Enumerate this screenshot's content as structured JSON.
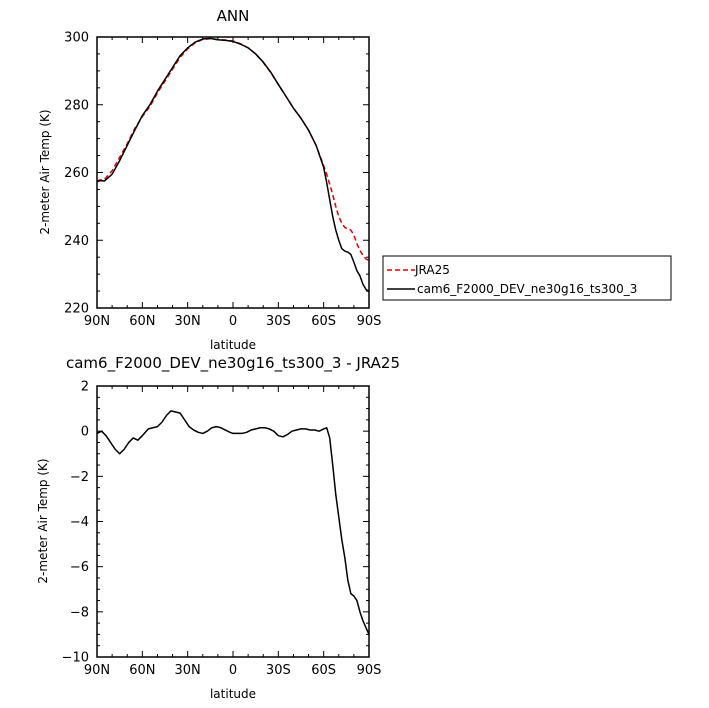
{
  "chart_data": [
    {
      "type": "line",
      "title": "ANN",
      "xlabel": "latitude",
      "ylabel": "2-meter Air Temp (K)",
      "xlim": [
        90,
        -90
      ],
      "ylim": [
        220,
        300
      ],
      "x_ticks": [
        90,
        60,
        30,
        0,
        -30,
        -60,
        -90
      ],
      "x_tick_labels": [
        "90N",
        "60N",
        "30N",
        "0",
        "30S",
        "60S",
        "90S"
      ],
      "y_ticks": [
        220,
        240,
        260,
        280,
        300
      ],
      "y_tick_labels": [
        "220",
        "240",
        "260",
        "280",
        "300"
      ],
      "legend_position": "right",
      "series": [
        {
          "name": "JRA25",
          "color": "#e00000",
          "dash": "dashed",
          "x": [
            90,
            88,
            85,
            80,
            75,
            70,
            65,
            60,
            55,
            50,
            45,
            40,
            35,
            30,
            25,
            20,
            15,
            10,
            5,
            0,
            -5,
            -10,
            -15,
            -20,
            -25,
            -30,
            -35,
            -40,
            -45,
            -50,
            -55,
            -60,
            -62,
            -64,
            -66,
            -68,
            -70,
            -72,
            -74,
            -76,
            -78,
            -80,
            -82,
            -84,
            -86,
            -88,
            -90
          ],
          "values": [
            257.5,
            257.8,
            258.0,
            260.5,
            264.5,
            268.5,
            273.0,
            276.5,
            279.5,
            283.5,
            287.0,
            290.5,
            294.0,
            296.5,
            298.3,
            299.3,
            299.5,
            299.2,
            299.1,
            298.8,
            298.0,
            296.8,
            295.0,
            292.5,
            289.5,
            286.0,
            282.5,
            279.0,
            276.0,
            272.5,
            268.0,
            262.0,
            259.5,
            256.5,
            253.5,
            250.0,
            247.0,
            245.0,
            243.8,
            243.3,
            243.0,
            241.5,
            239.0,
            237.0,
            235.5,
            234.5,
            234.0
          ]
        },
        {
          "name": "cam6_F2000_DEV_ne30g16_ts300_3",
          "color": "#000000",
          "dash": "solid",
          "x": [
            90,
            88,
            85,
            80,
            75,
            70,
            65,
            60,
            55,
            50,
            45,
            40,
            35,
            30,
            25,
            20,
            15,
            10,
            5,
            0,
            -5,
            -10,
            -15,
            -20,
            -25,
            -30,
            -35,
            -40,
            -45,
            -50,
            -55,
            -60,
            -62,
            -64,
            -66,
            -68,
            -70,
            -72,
            -74,
            -76,
            -78,
            -80,
            -82,
            -84,
            -86,
            -88,
            -90
          ],
          "values": [
            257.3,
            257.6,
            257.5,
            259.5,
            263.5,
            268.0,
            272.5,
            276.8,
            280.0,
            284.0,
            287.5,
            291.0,
            294.5,
            296.8,
            298.5,
            299.4,
            299.6,
            299.2,
            299.0,
            298.7,
            297.9,
            296.8,
            295.0,
            292.6,
            289.6,
            286.0,
            282.5,
            279.0,
            276.0,
            272.5,
            268.0,
            261.5,
            257.0,
            252.0,
            247.0,
            243.0,
            240.0,
            237.5,
            236.8,
            236.5,
            235.8,
            233.5,
            231.0,
            229.5,
            227.0,
            225.5,
            224.8
          ]
        }
      ]
    },
    {
      "type": "line",
      "title": "cam6_F2000_DEV_ne30g16_ts300_3 - JRA25",
      "xlabel": "latitude",
      "ylabel": "2-meter Air Temp (K)",
      "xlim": [
        90,
        -90
      ],
      "ylim": [
        -10,
        2
      ],
      "x_ticks": [
        90,
        60,
        30,
        0,
        -30,
        -60,
        -90
      ],
      "x_tick_labels": [
        "90N",
        "60N",
        "30N",
        "0",
        "30S",
        "60S",
        "90S"
      ],
      "y_ticks": [
        -10,
        -8,
        -6,
        -4,
        -2,
        0,
        2
      ],
      "y_tick_labels": [
        "−10",
        "−8",
        "−6",
        "−4",
        "−2",
        "0",
        "2"
      ],
      "series": [
        {
          "color": "#000000",
          "dash": "solid",
          "x": [
            90,
            87,
            84,
            81,
            78,
            75,
            72,
            69,
            66,
            63,
            60,
            56,
            53,
            50,
            47,
            44,
            41,
            38,
            35,
            32,
            29,
            26,
            23,
            20,
            17,
            14,
            11,
            8,
            5,
            2,
            0,
            -3,
            -6,
            -9,
            -12,
            -15,
            -18,
            -21,
            -24,
            -27,
            -30,
            -33,
            -36,
            -39,
            -42,
            -45,
            -48,
            -51,
            -54,
            -57,
            -60,
            -62,
            -64,
            -66,
            -68,
            -70,
            -72,
            -74,
            -76,
            -78,
            -80,
            -82,
            -84,
            -86,
            -88,
            -90
          ],
          "values": [
            -0.1,
            0.0,
            -0.2,
            -0.5,
            -0.8,
            -1.0,
            -0.8,
            -0.5,
            -0.3,
            -0.4,
            -0.2,
            0.1,
            0.15,
            0.2,
            0.4,
            0.7,
            0.9,
            0.85,
            0.8,
            0.5,
            0.2,
            0.05,
            -0.05,
            -0.1,
            0.0,
            0.15,
            0.2,
            0.15,
            0.05,
            -0.05,
            -0.1,
            -0.1,
            -0.1,
            -0.05,
            0.05,
            0.1,
            0.15,
            0.15,
            0.1,
            0.0,
            -0.2,
            -0.25,
            -0.15,
            0.0,
            0.05,
            0.1,
            0.1,
            0.05,
            0.05,
            0.0,
            0.1,
            0.15,
            -0.3,
            -1.5,
            -2.8,
            -3.8,
            -4.8,
            -5.6,
            -6.6,
            -7.2,
            -7.3,
            -7.5,
            -8.0,
            -8.4,
            -8.7,
            -9.0
          ]
        }
      ]
    }
  ]
}
